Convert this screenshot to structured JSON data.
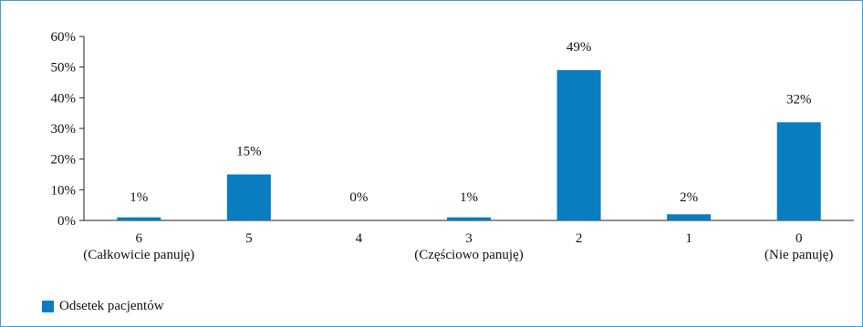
{
  "chart_data": {
    "type": "bar",
    "categories": [
      {
        "line1": "6",
        "line2": "(Całkowicie panuję)"
      },
      {
        "line1": "5",
        "line2": ""
      },
      {
        "line1": "4",
        "line2": ""
      },
      {
        "line1": "3",
        "line2": "(Częściowo panuję)"
      },
      {
        "line1": "2",
        "line2": ""
      },
      {
        "line1": "1",
        "line2": ""
      },
      {
        "line1": "0",
        "line2": "(Nie panuję)"
      }
    ],
    "series": [
      {
        "name": "Odsetek pacjentów",
        "values": [
          1,
          15,
          0,
          1,
          49,
          2,
          32
        ],
        "labels": [
          "1%",
          "15%",
          "0%",
          "1%",
          "49%",
          "2%",
          "32%"
        ]
      }
    ],
    "ylim": [
      0,
      60
    ],
    "yticks": [
      0,
      10,
      20,
      30,
      40,
      50,
      60
    ],
    "ytick_labels": [
      "0%",
      "10%",
      "20%",
      "30%",
      "40%",
      "50%",
      "60%"
    ],
    "grid": false,
    "legend_position": "bottom-left",
    "bar_color": "#0a7cc0"
  }
}
